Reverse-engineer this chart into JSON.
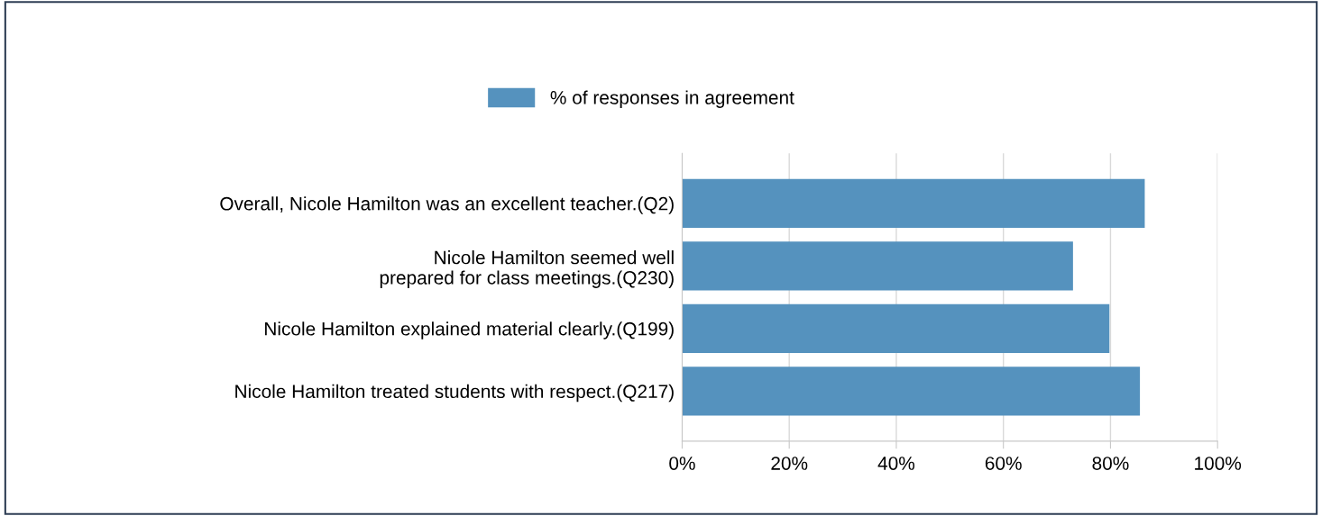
{
  "chart_data": {
    "type": "bar",
    "orientation": "horizontal",
    "categories": [
      "Overall, Nicole Hamilton was an excellent teacher.(Q2)",
      "Nicole Hamilton seemed well\nprepared for class meetings.(Q230)",
      "Nicole Hamilton explained material clearly.(Q199)",
      "Nicole Hamilton treated students with respect.(Q217)"
    ],
    "series": [
      {
        "name": "% of responses in agreement",
        "color": "#5592be",
        "values": [
          86.4,
          73.0,
          79.8,
          85.5
        ]
      }
    ],
    "xlim": [
      0,
      100
    ],
    "xticks": [
      {
        "value": 0,
        "label": "0%"
      },
      {
        "value": 20,
        "label": "20%"
      },
      {
        "value": 40,
        "label": "40%"
      },
      {
        "value": 60,
        "label": "60%"
      },
      {
        "value": 80,
        "label": "80%"
      },
      {
        "value": 100,
        "label": "100%"
      }
    ],
    "grid": "x",
    "legend": "top"
  }
}
